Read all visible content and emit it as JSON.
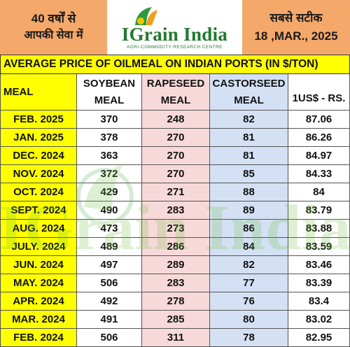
{
  "header": {
    "left_line1": "40 वर्षों से",
    "left_line2": "आपकी सेवा में",
    "logo_text": "IGrain India",
    "logo_subtitle": "AGRI-COMMODITY RESEARCH CENTRE",
    "right_line1": "सबसे सटीक",
    "right_line2": "18 ,MAR., 2025"
  },
  "title": "AVERAGE PRICE OF OILMEAL ON INDIAN PORTS (IN $/TON)",
  "columns": {
    "meal": "MEAL",
    "soybean_l1": "SOYBEAN",
    "soybean_l2": "MEAL",
    "rapeseed_l1": "RAPESEED",
    "rapeseed_l2": "MEAL",
    "castorseed_l1": "CASTORSEED",
    "castorseed_l2": "MEAL",
    "usd_rs": "1US$ - RS."
  },
  "rows": [
    {
      "month": "FEB. 2025",
      "soybean": "370",
      "rapeseed": "248",
      "castorseed": "82",
      "usd": "87.06"
    },
    {
      "month": "JAN. 2025",
      "soybean": "378",
      "rapeseed": "270",
      "castorseed": "81",
      "usd": "86.26"
    },
    {
      "month": "DEC. 2024",
      "soybean": "363",
      "rapeseed": "270",
      "castorseed": "81",
      "usd": "84.97"
    },
    {
      "month": "NOV. 2024",
      "soybean": "372",
      "rapeseed": "270",
      "castorseed": "85",
      "usd": "84.33"
    },
    {
      "month": "OCT. 2024",
      "soybean": "429",
      "rapeseed": "271",
      "castorseed": "88",
      "usd": "84"
    },
    {
      "month": "SEPT. 2024",
      "soybean": "490",
      "rapeseed": "283",
      "castorseed": "89",
      "usd": "83.79"
    },
    {
      "month": "AUG. 2024",
      "soybean": "473",
      "rapeseed": "273",
      "castorseed": "86",
      "usd": "83.88"
    },
    {
      "month": "JULY. 2024",
      "soybean": "489",
      "rapeseed": "286",
      "castorseed": "84",
      "usd": "83.59"
    },
    {
      "month": "JUN. 2024",
      "soybean": "497",
      "rapeseed": "289",
      "castorseed": "82",
      "usd": "83.46"
    },
    {
      "month": "MAY. 2024",
      "soybean": "506",
      "rapeseed": "283",
      "castorseed": "77",
      "usd": "83.39"
    },
    {
      "month": "APR. 2024",
      "soybean": "492",
      "rapeseed": "278",
      "castorseed": "76",
      "usd": "83.4"
    },
    {
      "month": "MAR. 2024",
      "soybean": "491",
      "rapeseed": "285",
      "castorseed": "80",
      "usd": "83.02"
    },
    {
      "month": "FEB. 2024",
      "soybean": "506",
      "rapeseed": "311",
      "castorseed": "78",
      "usd": "82.95"
    }
  ],
  "colors": {
    "header_orange": "#f4a86a",
    "title_yellow": "#ffff00",
    "rapeseed_pink": "#f5cccc",
    "castorseed_blue": "#ccdcf2",
    "logo_green": "#1f7a2e"
  }
}
